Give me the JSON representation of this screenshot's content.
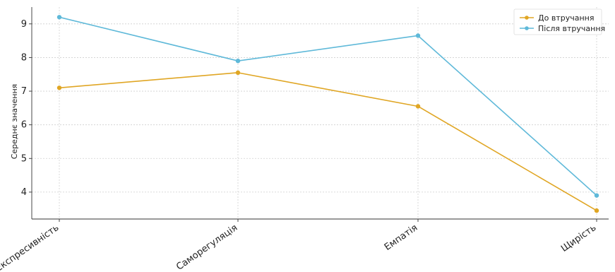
{
  "chart_data": {
    "type": "line",
    "title": "",
    "xlabel": "",
    "ylabel": "Середнє значення",
    "categories": [
      "Експресивність",
      "Саморегуляція",
      "Емпатія",
      "Щирість"
    ],
    "series": [
      {
        "name": "До втручання",
        "values": [
          7.1,
          7.55,
          6.55,
          3.45
        ],
        "color": "#e0a624"
      },
      {
        "name": "Після втручання",
        "values": [
          9.2,
          7.9,
          8.65,
          3.9
        ],
        "color": "#5fb9d9"
      }
    ],
    "yticks": [
      "4",
      "5",
      "6",
      "7",
      "8",
      "9"
    ],
    "ylim": [
      3.2,
      9.5
    ],
    "grid": true,
    "legend_position": "top-right"
  }
}
